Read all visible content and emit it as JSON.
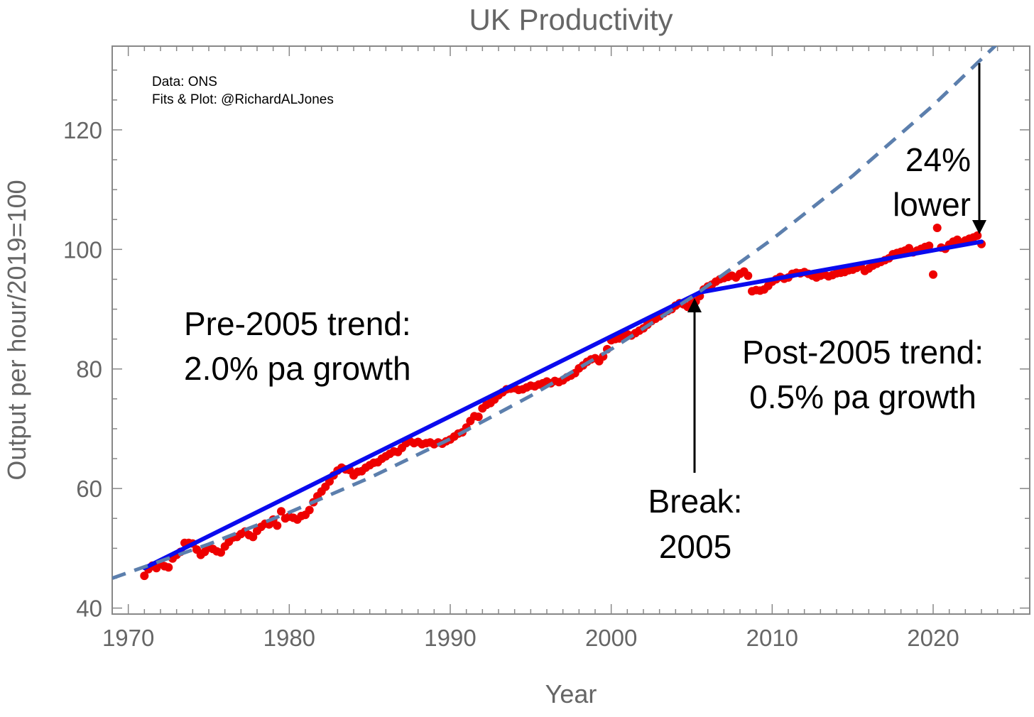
{
  "chart_data": {
    "type": "scatter",
    "title": "UK Productivity",
    "xlabel": "Year",
    "ylabel": "Output per hour/2019=100",
    "xlim": [
      1969,
      2026
    ],
    "ylim": [
      39,
      134
    ],
    "x_ticks": [
      1970,
      1980,
      1990,
      2000,
      2010,
      2020
    ],
    "y_ticks": [
      40,
      60,
      80,
      100,
      120
    ],
    "grid": false,
    "colors": {
      "points": "#ee0000",
      "fit": "#0a0aee",
      "projection": "#5c7fad",
      "axis_text": "#666666",
      "frame": "#888888"
    },
    "credits": [
      "Data: ONS",
      "Fits & Plot: @RichardALJones"
    ],
    "annotations": {
      "pre_trend": [
        "Pre-2005 trend:",
        "2.0% pa growth"
      ],
      "post_trend": [
        "Post-2005 trend:",
        "0.5% pa growth"
      ],
      "break": [
        "Break:",
        "2005"
      ],
      "gap": [
        "24%",
        "lower"
      ]
    },
    "series": [
      {
        "type": "scatter",
        "x": [
          1971.0,
          1971.25,
          1971.5,
          1971.75,
          1972.0,
          1972.25,
          1972.5,
          1972.75,
          1973.0,
          1973.25,
          1973.5,
          1973.75,
          1974.0,
          1974.25,
          1974.5,
          1974.75,
          1975.0,
          1975.25,
          1975.5,
          1975.75,
          1976.0,
          1976.25,
          1976.5,
          1976.75,
          1977.0,
          1977.25,
          1977.5,
          1977.75,
          1978.0,
          1978.25,
          1978.5,
          1978.75,
          1979.0,
          1979.25,
          1979.5,
          1979.75,
          1980.0,
          1980.25,
          1980.5,
          1980.75,
          1981.0,
          1981.25,
          1981.5,
          1981.75,
          1982.0,
          1982.25,
          1982.5,
          1982.75,
          1983.0,
          1983.25,
          1983.5,
          1983.75,
          1984.0,
          1984.25,
          1984.5,
          1984.75,
          1985.0,
          1985.25,
          1985.5,
          1985.75,
          1986.0,
          1986.25,
          1986.5,
          1986.75,
          1987.0,
          1987.25,
          1987.5,
          1987.75,
          1988.0,
          1988.25,
          1988.5,
          1988.75,
          1989.0,
          1989.25,
          1989.5,
          1989.75,
          1990.0,
          1990.25,
          1990.5,
          1990.75,
          1991.0,
          1991.25,
          1991.5,
          1991.75,
          1992.0,
          1992.25,
          1992.5,
          1992.75,
          1993.0,
          1993.25,
          1993.5,
          1993.75,
          1994.0,
          1994.25,
          1994.5,
          1994.75,
          1995.0,
          1995.25,
          1995.5,
          1995.75,
          1996.0,
          1996.25,
          1996.5,
          1996.75,
          1997.0,
          1997.25,
          1997.5,
          1997.75,
          1998.0,
          1998.25,
          1998.5,
          1998.75,
          1999.0,
          1999.25,
          1999.5,
          1999.75,
          2000.0,
          2000.25,
          2000.5,
          2000.75,
          2001.0,
          2001.25,
          2001.5,
          2001.75,
          2002.0,
          2002.25,
          2002.5,
          2002.75,
          2003.0,
          2003.25,
          2003.5,
          2003.75,
          2004.0,
          2004.25,
          2004.5,
          2004.75,
          2005.0,
          2005.25,
          2005.5,
          2005.75,
          2006.0,
          2006.25,
          2006.5,
          2006.75,
          2007.0,
          2007.25,
          2007.5,
          2007.75,
          2008.0,
          2008.25,
          2008.5,
          2008.75,
          2009.0,
          2009.25,
          2009.5,
          2009.75,
          2010.0,
          2010.25,
          2010.5,
          2010.75,
          2011.0,
          2011.25,
          2011.5,
          2011.75,
          2012.0,
          2012.25,
          2012.5,
          2012.75,
          2013.0,
          2013.25,
          2013.5,
          2013.75,
          2014.0,
          2014.25,
          2014.5,
          2014.75,
          2015.0,
          2015.25,
          2015.5,
          2015.75,
          2016.0,
          2016.25,
          2016.5,
          2016.75,
          2017.0,
          2017.25,
          2017.5,
          2017.75,
          2018.0,
          2018.25,
          2018.5,
          2018.75,
          2019.0,
          2019.25,
          2019.5,
          2019.75,
          2020.0,
          2020.25,
          2020.5,
          2020.75,
          2021.0,
          2021.25,
          2021.5,
          2021.75,
          2022.0,
          2022.25,
          2022.5,
          2022.75,
          2023.0
        ],
        "y": [
          45.4,
          46.5,
          47.1,
          46.7,
          47.5,
          47.0,
          46.8,
          48.3,
          48.9,
          49.4,
          50.9,
          50.9,
          50.8,
          49.8,
          48.9,
          49.4,
          50.1,
          49.9,
          49.5,
          49.3,
          50.3,
          51.1,
          51.8,
          51.9,
          52.4,
          52.8,
          52.2,
          51.9,
          52.9,
          53.6,
          54.1,
          54.0,
          54.8,
          53.8,
          56.2,
          55.0,
          55.3,
          55.1,
          54.8,
          55.4,
          55.6,
          56.4,
          57.7,
          58.7,
          59.5,
          60.3,
          61.2,
          62.2,
          63.0,
          63.5,
          63.2,
          63.1,
          62.2,
          62.8,
          62.9,
          63.5,
          63.9,
          64.3,
          64.4,
          65.0,
          65.4,
          65.8,
          66.2,
          66.1,
          66.8,
          67.6,
          67.9,
          67.6,
          67.8,
          67.4,
          67.6,
          67.7,
          67.4,
          67.7,
          67.5,
          67.9,
          68.2,
          68.7,
          69.2,
          69.4,
          70.2,
          71.3,
          72.1,
          72.0,
          73.4,
          74.0,
          74.3,
          74.9,
          75.6,
          76.1,
          76.6,
          76.7,
          76.8,
          76.5,
          76.6,
          76.9,
          77.2,
          77.1,
          77.4,
          77.6,
          77.9,
          77.6,
          78.0,
          77.8,
          78.1,
          78.6,
          78.9,
          79.3,
          80.1,
          80.6,
          81.2,
          81.6,
          81.8,
          81.3,
          82.1,
          83.3,
          84.8,
          85.0,
          85.1,
          85.4,
          85.8,
          85.6,
          86.0,
          86.4,
          86.8,
          87.4,
          88.0,
          88.4,
          88.8,
          89.3,
          89.7,
          90.0,
          90.6,
          91.0,
          90.8,
          90.4,
          90.9,
          91.3,
          92.2,
          93.3,
          93.8,
          94.1,
          94.6,
          95.0,
          95.2,
          95.4,
          95.6,
          95.3,
          95.9,
          96.3,
          95.6,
          93.0,
          93.2,
          93.1,
          93.3,
          93.9,
          94.6,
          95.0,
          95.4,
          95.1,
          95.3,
          95.9,
          96.1,
          96.0,
          96.2,
          95.9,
          95.6,
          95.3,
          95.6,
          95.8,
          95.5,
          95.7,
          96.0,
          96.1,
          96.2,
          96.5,
          96.6,
          96.9,
          97.2,
          96.4,
          96.8,
          97.3,
          97.6,
          97.9,
          98.2,
          98.5,
          99.2,
          99.4,
          99.6,
          99.8,
          100.2,
          99.5,
          99.8,
          100.1,
          100.4,
          100.6,
          95.8,
          103.6,
          100.3,
          100.1,
          100.8,
          101.3,
          101.6,
          101.1,
          101.5,
          101.8,
          102.0,
          102.3,
          100.9
        ]
      },
      {
        "type": "line",
        "x": [
          1971,
          2005.5
        ],
        "y": [
          46.7,
          92.8
        ]
      },
      {
        "type": "line",
        "x": [
          2005.5,
          2023
        ],
        "y": [
          92.8,
          101.3
        ]
      },
      {
        "type": "dashed-line",
        "x": [
          1969,
          1975,
          1980,
          1985,
          1990,
          1995,
          2000,
          2005,
          2010,
          2015,
          2020,
          2025
        ],
        "y": [
          45.0,
          50.7,
          56.0,
          61.8,
          68.3,
          75.5,
          83.3,
          92.0,
          101.7,
          112.3,
          124.1,
          137.0
        ]
      }
    ]
  }
}
